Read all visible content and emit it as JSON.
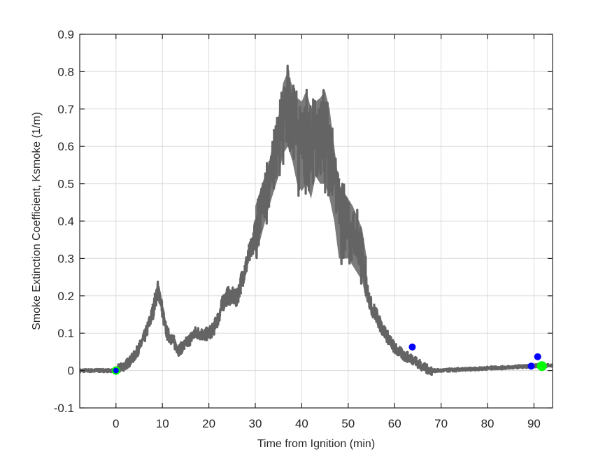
{
  "chart_data": {
    "type": "line",
    "title": "",
    "xlabel": "Time from Ignition (min)",
    "ylabel": "Smoke Extinction Coefficient, Ksmoke (1/m)",
    "xlim": [
      -7.8,
      94
    ],
    "ylim": [
      -0.1,
      0.9
    ],
    "grid": true,
    "legend": null,
    "x_ticks": [
      0,
      10,
      20,
      30,
      40,
      50,
      60,
      70,
      80,
      90
    ],
    "x_tick_labels": [
      "0",
      "10",
      "20",
      "30",
      "40",
      "50",
      "60",
      "70",
      "80",
      "90"
    ],
    "y_ticks": [
      -0.1,
      0,
      0.1,
      0.2,
      0.3,
      0.4,
      0.5,
      0.6,
      0.7,
      0.8,
      0.9
    ],
    "y_tick_labels": [
      "-0.1",
      "0",
      "0.1",
      "0.2",
      "0.3",
      "0.4",
      "0.5",
      "0.6",
      "0.7",
      "0.8",
      "0.9"
    ],
    "series": [
      {
        "name": "Ksmoke",
        "color": "#646464",
        "style": "line-with-dot-markers",
        "x": [
          -7.8,
          -5,
          -2,
          0,
          1,
          2,
          3,
          4,
          5,
          6,
          7,
          8,
          8.5,
          9,
          9.5,
          10,
          10.5,
          11,
          12,
          13,
          13.5,
          14,
          15,
          16,
          17,
          18,
          19,
          20,
          21,
          22,
          23,
          24,
          25,
          26,
          27,
          28,
          29,
          30,
          31,
          32,
          33,
          34,
          35,
          36,
          37,
          38,
          39,
          40,
          41,
          42,
          43,
          44,
          45,
          46,
          47,
          48,
          49,
          50,
          51,
          52,
          53,
          54,
          55,
          56,
          57,
          58,
          59,
          60,
          61,
          62,
          63,
          64,
          65,
          66,
          67,
          68,
          70,
          75,
          80,
          85,
          90,
          92,
          94
        ],
        "y": [
          0.0,
          0.0,
          0.0,
          0.0,
          0.008,
          0.015,
          0.025,
          0.04,
          0.06,
          0.085,
          0.12,
          0.16,
          0.19,
          0.215,
          0.2,
          0.16,
          0.12,
          0.1,
          0.085,
          0.065,
          0.055,
          0.06,
          0.07,
          0.085,
          0.1,
          0.1,
          0.095,
          0.1,
          0.11,
          0.14,
          0.18,
          0.2,
          0.2,
          0.19,
          0.24,
          0.28,
          0.32,
          0.37,
          0.43,
          0.49,
          0.54,
          0.6,
          0.65,
          0.7,
          0.74,
          0.7,
          0.64,
          0.62,
          0.63,
          0.6,
          0.66,
          0.68,
          0.63,
          0.6,
          0.56,
          0.48,
          0.42,
          0.38,
          0.36,
          0.33,
          0.28,
          0.22,
          0.17,
          0.15,
          0.12,
          0.1,
          0.08,
          0.06,
          0.05,
          0.04,
          0.035,
          0.03,
          0.02,
          0.01,
          0.004,
          0.0,
          0.0,
          0.003,
          0.006,
          0.009,
          0.012,
          0.013,
          0.013
        ],
        "noise_band": {
          "x": [
            30,
            33,
            35,
            36,
            37,
            38,
            39,
            40,
            41,
            42,
            43,
            44,
            45,
            46,
            47,
            48,
            49,
            50,
            51,
            52,
            53,
            54
          ],
          "upper": [
            0.44,
            0.56,
            0.68,
            0.77,
            0.8,
            0.76,
            0.73,
            0.72,
            0.75,
            0.7,
            0.72,
            0.73,
            0.75,
            0.7,
            0.6,
            0.5,
            0.48,
            0.46,
            0.44,
            0.41,
            0.38,
            0.3
          ],
          "lower": [
            0.3,
            0.44,
            0.52,
            0.58,
            0.6,
            0.56,
            0.5,
            0.48,
            0.5,
            0.46,
            0.52,
            0.5,
            0.5,
            0.46,
            0.4,
            0.3,
            0.3,
            0.3,
            0.28,
            0.26,
            0.24,
            0.18
          ]
        }
      }
    ],
    "markers": [
      {
        "name": "ignition-marker",
        "x": 0,
        "y": 0.0,
        "fill": "#0000ff",
        "edge": "#00ff00",
        "size": 5
      },
      {
        "name": "event-marker-1",
        "x": 63.8,
        "y": 0.063,
        "fill": "#0000ff",
        "edge": "#0000ff",
        "size": 5
      },
      {
        "name": "event-marker-2",
        "x": 89.4,
        "y": 0.012,
        "fill": "#0000ff",
        "edge": "#0000ff",
        "size": 5
      },
      {
        "name": "event-marker-3",
        "x": 90.8,
        "y": 0.037,
        "fill": "#0000ff",
        "edge": "#0000ff",
        "size": 5
      },
      {
        "name": "end-marker",
        "x": 91.7,
        "y": 0.012,
        "fill": "#00ff00",
        "edge": "#00ff00",
        "size": 7
      }
    ]
  },
  "colors": {
    "line": "#646464",
    "grid": "#dcdcdc",
    "axes": "#262626",
    "marker_blue": "#0000ff",
    "marker_green": "#00ff00"
  }
}
